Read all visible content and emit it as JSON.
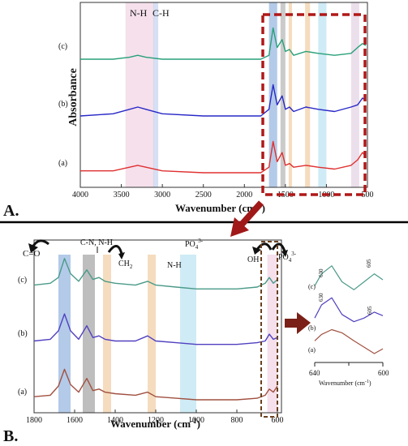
{
  "panel_a": {
    "label": "A.",
    "ylabel": "Absorbance",
    "xlabel_main": "Wavenumber (cm",
    "xlabel_sup": "-1",
    "xlabel_end": ")",
    "band_labels": [
      "N-H",
      "C-H"
    ],
    "trace_labels": [
      "(c)",
      "(b)",
      "(a)"
    ]
  },
  "panel_b": {
    "label": "B.",
    "xlabel_main": "Wavenumber (cm",
    "xlabel_sup": "-1",
    "xlabel_end": ")",
    "band_labels": {
      "co": "C=O",
      "cn": "C-N, N-H",
      "ch2_main": "CH",
      "ch2_sub": "2",
      "nh": "N-H",
      "po4_main": "PO",
      "po4_sub": "4",
      "po4_sup": "3-",
      "oh": "OH",
      "po4b_main": "PO",
      "po4b_sub": "4",
      "po4b_sup": "3-"
    },
    "trace_labels": [
      "(c)",
      "(b)",
      "(a)"
    ]
  },
  "inset": {
    "peak_labels": [
      "630",
      "605",
      "630",
      "605"
    ],
    "trace_labels": [
      "(c)",
      "(b)",
      "(a)"
    ],
    "xticks": [
      "640",
      "600"
    ],
    "xlabel_main": "Wavenumber (cm",
    "xlabel_sup": "-1",
    "xlabel_end": ")"
  },
  "colors": {
    "trace_a_top": "#e03030",
    "trace_b_top": "#2828c8",
    "trace_c_top": "#2aa07a",
    "trace_a_bottom": "#a05040",
    "trace_b_bottom": "#5040c0",
    "trace_c_bottom": "#4a9a88",
    "frame_dashed": "#b01818",
    "arrow": "#a01818"
  },
  "chart_data": [
    {
      "type": "line",
      "panel": "A",
      "xlabel": "Wavenumber (cm-1)",
      "ylabel": "Absorbance",
      "xlim": [
        4000,
        500
      ],
      "xticks": [
        4000,
        3500,
        3000,
        2500,
        2000,
        1500,
        1000,
        500
      ],
      "highlight_bands": [
        {
          "label": "N-H",
          "range": [
            3450,
            3100
          ],
          "color": "#f2d6e6"
        },
        {
          "label": "C-H",
          "range": [
            3110,
            3050
          ],
          "color": "#c8d6f0"
        },
        {
          "label": "",
          "range": [
            1700,
            1600
          ],
          "color": "#9ab8e0"
        },
        {
          "label": "",
          "range": [
            1560,
            1500
          ],
          "color": "#b8b8b8"
        },
        {
          "label": "",
          "range": [
            1460,
            1420
          ],
          "color": "#f2d0a8"
        },
        {
          "label": "",
          "range": [
            1260,
            1200
          ],
          "color": "#f2d0a8"
        },
        {
          "label": "",
          "range": [
            1100,
            1000
          ],
          "color": "#bfe4f2"
        },
        {
          "label": "",
          "range": [
            700,
            600
          ],
          "color": "#e6d4e6"
        }
      ],
      "series": [
        {
          "name": "(c)",
          "x": [
            4000,
            3600,
            3400,
            3300,
            3200,
            3000,
            2500,
            2000,
            1800,
            1700,
            1650,
            1600,
            1540,
            1500,
            1450,
            1400,
            1250,
            1100,
            900,
            700,
            620,
            560,
            520
          ],
          "y": [
            0.72,
            0.72,
            0.73,
            0.74,
            0.73,
            0.72,
            0.72,
            0.72,
            0.72,
            0.74,
            0.88,
            0.78,
            0.82,
            0.76,
            0.77,
            0.74,
            0.76,
            0.75,
            0.74,
            0.75,
            0.78,
            0.8,
            0.79
          ]
        },
        {
          "name": "(b)",
          "x": [
            4000,
            3600,
            3400,
            3300,
            3200,
            3000,
            2500,
            2000,
            1800,
            1700,
            1650,
            1600,
            1540,
            1500,
            1450,
            1400,
            1250,
            1100,
            900,
            700,
            620,
            560,
            520
          ],
          "y": [
            0.44,
            0.45,
            0.47,
            0.48,
            0.47,
            0.45,
            0.44,
            0.44,
            0.44,
            0.47,
            0.58,
            0.49,
            0.53,
            0.47,
            0.48,
            0.46,
            0.48,
            0.47,
            0.46,
            0.48,
            0.49,
            0.52,
            0.51
          ]
        },
        {
          "name": "(a)",
          "x": [
            4000,
            3600,
            3400,
            3300,
            3200,
            3000,
            2500,
            2000,
            1800,
            1700,
            1650,
            1600,
            1540,
            1500,
            1450,
            1400,
            1250,
            1100,
            900,
            700,
            620,
            560,
            520
          ],
          "y": [
            0.14,
            0.14,
            0.16,
            0.17,
            0.16,
            0.14,
            0.13,
            0.13,
            0.13,
            0.16,
            0.3,
            0.19,
            0.24,
            0.17,
            0.18,
            0.16,
            0.17,
            0.16,
            0.15,
            0.17,
            0.2,
            0.24,
            0.22
          ]
        }
      ]
    },
    {
      "type": "line",
      "panel": "B",
      "xlabel": "Wavenumber (cm-1)",
      "xlim": [
        1800,
        580
      ],
      "xticks": [
        1800,
        1600,
        1400,
        1200,
        1000,
        800,
        600
      ],
      "highlight_bands": [
        {
          "label": "C=O",
          "range": [
            1680,
            1620
          ],
          "color": "#9ab8e0"
        },
        {
          "label": "C-N, N-H",
          "range": [
            1560,
            1500
          ],
          "color": "#a8a8a8"
        },
        {
          "label": "CH2",
          "range": [
            1460,
            1420
          ],
          "color": "#f2d0a8"
        },
        {
          "label": "N-H",
          "range": [
            1240,
            1200
          ],
          "color": "#f2d0a8"
        },
        {
          "label": "PO4 3-",
          "range": [
            1080,
            1000
          ],
          "color": "#bfe4f2"
        },
        {
          "label": "",
          "range": [
            650,
            600
          ],
          "color": "#f2d6e6"
        }
      ],
      "series": [
        {
          "name": "(c)",
          "x": [
            1800,
            1720,
            1680,
            1650,
            1620,
            1580,
            1540,
            1510,
            1480,
            1450,
            1400,
            1300,
            1240,
            1200,
            1100,
            1000,
            900,
            800,
            700,
            660,
            640,
            620,
            600
          ],
          "y": [
            0.78,
            0.79,
            0.82,
            0.92,
            0.84,
            0.8,
            0.86,
            0.81,
            0.82,
            0.8,
            0.79,
            0.78,
            0.8,
            0.78,
            0.77,
            0.76,
            0.76,
            0.76,
            0.77,
            0.79,
            0.82,
            0.79,
            0.81
          ]
        },
        {
          "name": "(b)",
          "x": [
            1800,
            1720,
            1680,
            1650,
            1620,
            1580,
            1540,
            1510,
            1480,
            1450,
            1400,
            1300,
            1240,
            1200,
            1100,
            1000,
            900,
            800,
            700,
            660,
            640,
            620,
            600
          ],
          "y": [
            0.44,
            0.45,
            0.5,
            0.6,
            0.5,
            0.45,
            0.53,
            0.46,
            0.47,
            0.45,
            0.44,
            0.44,
            0.47,
            0.44,
            0.43,
            0.42,
            0.42,
            0.42,
            0.43,
            0.44,
            0.48,
            0.45,
            0.46
          ]
        },
        {
          "name": "(a)",
          "x": [
            1800,
            1720,
            1680,
            1650,
            1620,
            1580,
            1540,
            1510,
            1480,
            1450,
            1400,
            1300,
            1240,
            1200,
            1100,
            1000,
            900,
            800,
            700,
            660,
            640,
            620,
            600
          ],
          "y": [
            0.08,
            0.09,
            0.15,
            0.26,
            0.16,
            0.11,
            0.2,
            0.12,
            0.13,
            0.11,
            0.1,
            0.09,
            0.11,
            0.08,
            0.07,
            0.06,
            0.06,
            0.06,
            0.07,
            0.09,
            0.13,
            0.11,
            0.15
          ]
        }
      ]
    },
    {
      "type": "line",
      "panel": "B-inset",
      "xlabel": "Wavenumber (cm-1)",
      "xlim": [
        640,
        600
      ],
      "xticks": [
        640,
        600
      ],
      "series": [
        {
          "name": "(c)",
          "x": [
            640,
            636,
            630,
            624,
            617,
            611,
            605,
            600
          ],
          "y": [
            0.8,
            0.86,
            0.9,
            0.82,
            0.78,
            0.82,
            0.86,
            0.83
          ]
        },
        {
          "name": "(b)",
          "x": [
            640,
            636,
            630,
            624,
            617,
            611,
            605,
            600
          ],
          "y": [
            0.45,
            0.56,
            0.62,
            0.48,
            0.42,
            0.45,
            0.5,
            0.47
          ]
        },
        {
          "name": "(a)",
          "x": [
            640,
            636,
            630,
            624,
            617,
            611,
            605,
            600
          ],
          "y": [
            0.14,
            0.18,
            0.21,
            0.19,
            0.14,
            0.1,
            0.06,
            0.09
          ]
        }
      ]
    }
  ]
}
